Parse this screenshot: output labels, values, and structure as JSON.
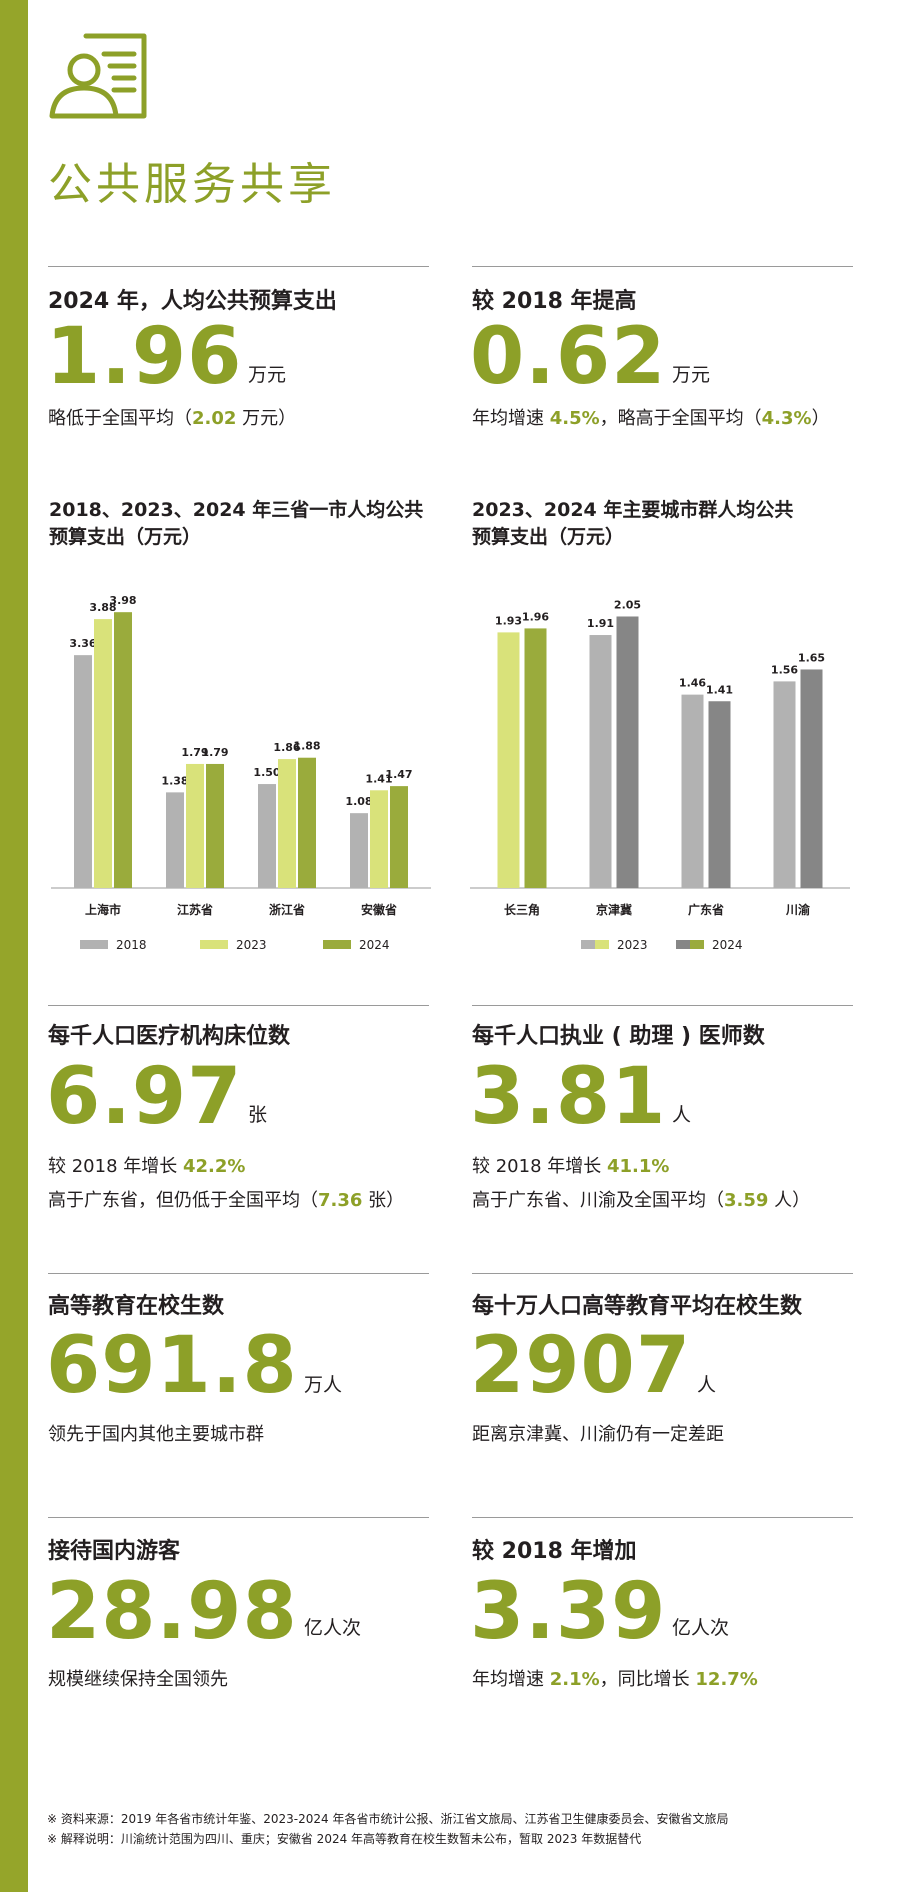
{
  "title": "公共服务共享",
  "colors": {
    "accent": "#8da028",
    "sidebar": "#95a52a"
  },
  "icon": "person-document-icon",
  "metrics": [
    {
      "heading": "2024 年，人均公共预算支出",
      "value": "1.96",
      "unit": "万元",
      "notes": [
        [
          {
            "t": "略低于全国平均（"
          },
          {
            "t": "2.02",
            "h": true
          },
          {
            "t": " 万元）"
          }
        ]
      ]
    },
    {
      "heading": "较 2018 年提高",
      "value": "0.62",
      "unit": "万元",
      "notes": [
        [
          {
            "t": "年均增速 "
          },
          {
            "t": "4.5%",
            "h": true
          },
          {
            "t": "，略高于全国平均（"
          },
          {
            "t": "4.3%",
            "h": true
          },
          {
            "t": "）"
          }
        ]
      ]
    },
    {
      "heading": "每千人口医疗机构床位数",
      "value": "6.97",
      "unit": "张",
      "notes": [
        [
          {
            "t": "较 2018 年增长 "
          },
          {
            "t": "42.2%",
            "h": true
          }
        ],
        [
          {
            "t": "高于广东省，但仍低于全国平均（"
          },
          {
            "t": "7.36",
            "h": true
          },
          {
            "t": " 张）"
          }
        ]
      ]
    },
    {
      "heading": "每千人口执业 ( 助理 ) 医师数",
      "value": "3.81",
      "unit": "人",
      "notes": [
        [
          {
            "t": "较 2018 年增长 "
          },
          {
            "t": "41.1%",
            "h": true
          }
        ],
        [
          {
            "t": "高于广东省、川渝及全国平均（"
          },
          {
            "t": "3.59",
            "h": true
          },
          {
            "t": " 人）"
          }
        ]
      ]
    },
    {
      "heading": "高等教育在校生数",
      "value": "691.8",
      "unit": "万人",
      "notes": [
        [
          {
            "t": "领先于国内其他主要城市群"
          }
        ]
      ]
    },
    {
      "heading": "每十万人口高等教育平均在校生数",
      "value": "2907",
      "unit": "人",
      "notes": [
        [
          {
            "t": "距离京津冀、川渝仍有一定差距"
          }
        ]
      ]
    },
    {
      "heading": "接待国内游客",
      "value": "28.98",
      "unit": "亿人次",
      "notes": [
        [
          {
            "t": "规模继续保持全国领先"
          }
        ]
      ]
    },
    {
      "heading": "较 2018 年增加",
      "value": "3.39",
      "unit": "亿人次",
      "notes": [
        [
          {
            "t": "年均增速 "
          },
          {
            "t": "2.1%",
            "h": true
          },
          {
            "t": "，同比增长 "
          },
          {
            "t": "12.7%",
            "h": true
          }
        ]
      ]
    }
  ],
  "chart_data": [
    {
      "type": "bar",
      "title": "2018、2023、2024 年三省一市人均公共预算支出（万元）",
      "title_lines": [
        "2018、2023、2024 年三省一市人均公共",
        "预算支出（万元）"
      ],
      "categories": [
        "上海市",
        "江苏省",
        "浙江省",
        "安徽省"
      ],
      "series": [
        {
          "name": "2018",
          "color": "#b2b2b2",
          "values": [
            3.36,
            1.38,
            1.5,
            1.08
          ]
        },
        {
          "name": "2023",
          "color": "#d9e27a",
          "values": [
            3.88,
            1.79,
            1.86,
            1.41
          ]
        },
        {
          "name": "2024",
          "color": "#9aab3c",
          "values": [
            3.98,
            1.79,
            1.88,
            1.47
          ]
        }
      ],
      "ylim": [
        0,
        4.3
      ],
      "legend_position": "bottom"
    },
    {
      "type": "bar",
      "title": "2023、2024 年主要城市群人均公共预算支出（万元）",
      "title_lines": [
        "2023、2024 年主要城市群人均公共",
        "预算支出（万元）"
      ],
      "categories": [
        "长三角",
        "京津冀",
        "广东省",
        "川渝"
      ],
      "series": [
        {
          "name": "2023",
          "values": [
            1.93,
            1.91,
            1.46,
            1.56
          ],
          "colors": [
            "#d9e27a",
            "#b2b2b2",
            "#b2b2b2",
            "#b2b2b2"
          ]
        },
        {
          "name": "2024",
          "values": [
            1.96,
            2.05,
            1.41,
            1.65
          ],
          "colors": [
            "#9aab3c",
            "#868686",
            "#868686",
            "#868686"
          ]
        }
      ],
      "ylim": [
        0,
        2.25
      ],
      "legend_position": "bottom"
    }
  ],
  "footnotes": [
    "※ 资料来源：2019 年各省市统计年鉴、2023-2024 年各省市统计公报、浙江省文旅局、江苏省卫生健康委员会、安徽省文旅局",
    "※ 解释说明：川渝统计范围为四川、重庆；安徽省 2024 年高等教育在校生数暂未公布，暂取 2023 年数据替代"
  ]
}
